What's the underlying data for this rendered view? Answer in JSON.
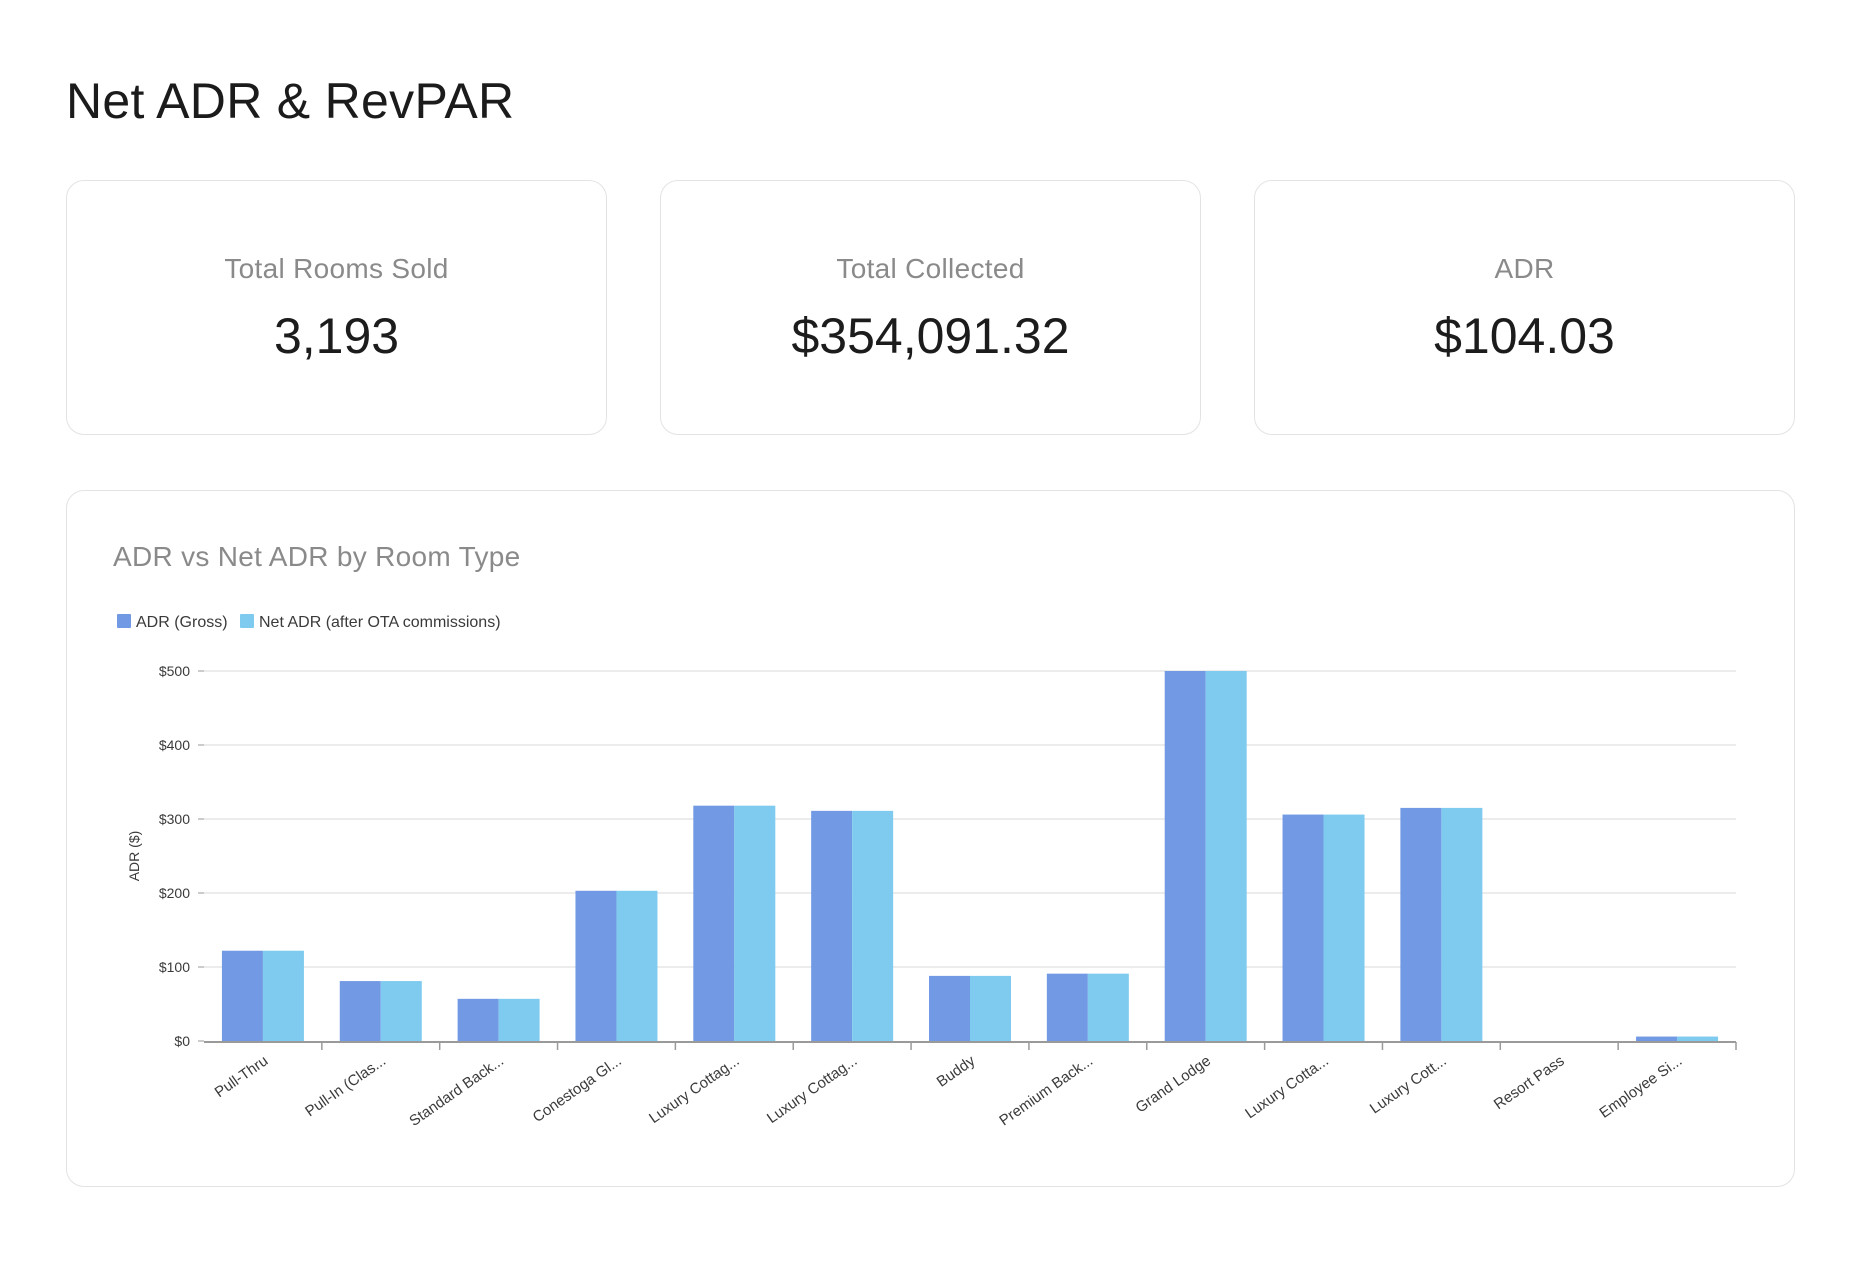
{
  "page": {
    "title": "Net ADR & RevPAR"
  },
  "kpis": [
    {
      "label": "Total Rooms Sold",
      "value": "3,193"
    },
    {
      "label": "Total Collected",
      "value": "$354,091.32"
    },
    {
      "label": "ADR",
      "value": "$104.03"
    }
  ],
  "chart_card": {
    "title": "ADR vs Net ADR by Room Type"
  },
  "colors": {
    "adr_gross": "#7299e3",
    "net_adr": "#7ecbef",
    "grid": "#e6e6e6",
    "axis": "#9a9a9a"
  },
  "chart_data": {
    "type": "bar",
    "title": "ADR vs Net ADR by Room Type",
    "xlabel": "",
    "ylabel": "ADR ($)",
    "ylim": [
      0,
      500
    ],
    "yticks": [
      {
        "value": 0,
        "label": "$0"
      },
      {
        "value": 100,
        "label": "$100"
      },
      {
        "value": 200,
        "label": "$200"
      },
      {
        "value": 300,
        "label": "$300"
      },
      {
        "value": 400,
        "label": "$400"
      },
      {
        "value": 500,
        "label": "$500"
      }
    ],
    "grid": true,
    "legend_position": "top-left",
    "categories": [
      "Pull-Thru",
      "Pull-In (Clas...",
      "Standard Back...",
      "Conestoga Gl...",
      "Luxury Cottag...",
      "Luxury Cottag...",
      "Buddy",
      "Premium Back...",
      "Grand Lodge",
      "Luxury Cotta...",
      "Luxury Cott...",
      "Resort Pass",
      "Employee Si..."
    ],
    "series": [
      {
        "name": "ADR (Gross)",
        "values": [
          122,
          81,
          57,
          203,
          318,
          311,
          88,
          91,
          500,
          306,
          315,
          0,
          6
        ]
      },
      {
        "name": "Net ADR (after OTA commissions)",
        "values": [
          122,
          81,
          57,
          203,
          318,
          311,
          88,
          91,
          500,
          306,
          315,
          0,
          6
        ]
      }
    ]
  }
}
